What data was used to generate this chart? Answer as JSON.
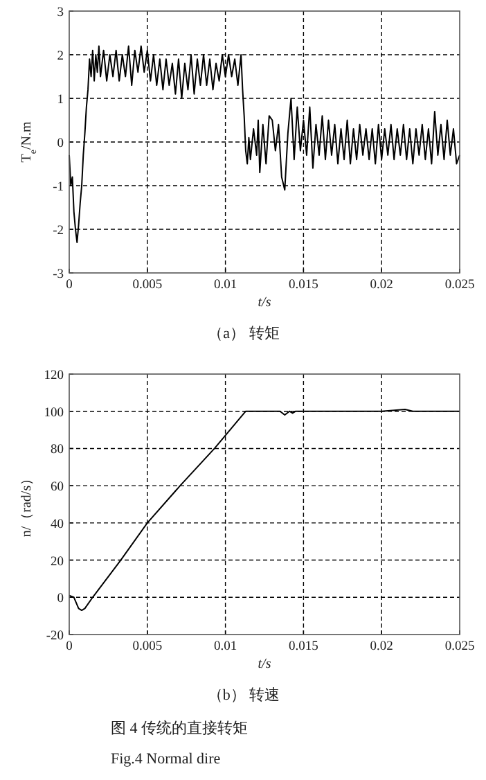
{
  "chart_data": [
    {
      "type": "line",
      "title": "（a）  转矩",
      "xlabel": "t/s",
      "ylabel": "T$_{e}$/N.m",
      "xlim": [
        0,
        0.025
      ],
      "ylim": [
        -3,
        3
      ],
      "xticks": [
        0,
        0.005,
        0.01,
        0.015,
        0.02,
        0.025
      ],
      "yticks": [
        -3,
        -2,
        -1,
        0,
        1,
        2,
        3
      ],
      "grid": true,
      "series": [
        {
          "color": "#000000",
          "x": [
            0,
            0.0001,
            0.0002,
            0.0003,
            0.0004,
            0.0005,
            0.0006,
            0.0007,
            0.0008,
            0.0009,
            0.001,
            0.0011,
            0.0012,
            0.0013,
            0.0014,
            0.0015,
            0.0016,
            0.0017,
            0.0018,
            0.0019,
            0.002,
            0.0022,
            0.0024,
            0.0026,
            0.0028,
            0.003,
            0.0032,
            0.0034,
            0.0036,
            0.0038,
            0.004,
            0.0042,
            0.0044,
            0.0046,
            0.0048,
            0.005,
            0.0052,
            0.0054,
            0.0056,
            0.0058,
            0.006,
            0.0062,
            0.0064,
            0.0066,
            0.0068,
            0.007,
            0.0072,
            0.0074,
            0.0076,
            0.0078,
            0.008,
            0.0082,
            0.0084,
            0.0086,
            0.0088,
            0.009,
            0.0092,
            0.0094,
            0.0096,
            0.0098,
            0.01,
            0.0102,
            0.0104,
            0.0106,
            0.0108,
            0.011,
            0.0111,
            0.0112,
            0.0113,
            0.0114,
            0.0115,
            0.0116,
            0.0118,
            0.012,
            0.0121,
            0.0122,
            0.0124,
            0.0126,
            0.0128,
            0.013,
            0.0132,
            0.0134,
            0.0136,
            0.0138,
            0.014,
            0.0142,
            0.0144,
            0.0146,
            0.0148,
            0.015,
            0.0152,
            0.0154,
            0.0156,
            0.0158,
            0.016,
            0.0162,
            0.0164,
            0.0166,
            0.0168,
            0.017,
            0.0172,
            0.0174,
            0.0176,
            0.0178,
            0.018,
            0.0182,
            0.0184,
            0.0186,
            0.0188,
            0.019,
            0.0192,
            0.0194,
            0.0196,
            0.0198,
            0.02,
            0.0202,
            0.0204,
            0.0206,
            0.0208,
            0.021,
            0.0212,
            0.0214,
            0.0216,
            0.0218,
            0.022,
            0.0222,
            0.0224,
            0.0226,
            0.0228,
            0.023,
            0.0232,
            0.0234,
            0.0236,
            0.0238,
            0.024,
            0.0242,
            0.0244,
            0.0246,
            0.0248,
            0.025
          ],
          "values": [
            -0.3,
            -1.0,
            -0.8,
            -1.6,
            -2.0,
            -2.3,
            -1.9,
            -1.4,
            -1.0,
            -0.3,
            0.2,
            0.8,
            1.2,
            1.9,
            1.5,
            2.1,
            1.4,
            2.0,
            1.6,
            2.2,
            1.5,
            2.1,
            1.4,
            2.0,
            1.5,
            2.1,
            1.4,
            2.0,
            1.5,
            2.2,
            1.3,
            2.1,
            1.6,
            2.2,
            1.6,
            2.1,
            1.4,
            2.0,
            1.3,
            1.9,
            1.2,
            1.9,
            1.3,
            1.8,
            1.1,
            1.9,
            1.0,
            1.8,
            1.2,
            2.0,
            1.1,
            1.9,
            1.3,
            2.0,
            1.3,
            1.9,
            1.2,
            1.8,
            1.4,
            2.0,
            1.5,
            2.0,
            1.5,
            1.9,
            1.3,
            2.0,
            1.2,
            0.6,
            -0.2,
            -0.5,
            0.1,
            -0.4,
            0.3,
            -0.3,
            0.5,
            -0.7,
            0.4,
            -0.5,
            0.6,
            0.5,
            -0.2,
            0.4,
            -0.8,
            -1.1,
            0.2,
            1.0,
            -0.4,
            0.8,
            -0.2,
            0.5,
            -0.3,
            0.8,
            -0.6,
            0.4,
            -0.3,
            0.6,
            -0.4,
            0.5,
            -0.3,
            0.4,
            -0.5,
            0.3,
            -0.4,
            0.5,
            -0.5,
            0.3,
            -0.4,
            0.4,
            -0.3,
            0.3,
            -0.4,
            0.3,
            -0.5,
            0.4,
            -0.4,
            0.3,
            -0.3,
            0.4,
            -0.4,
            0.3,
            -0.3,
            0.4,
            -0.4,
            0.3,
            -0.5,
            0.3,
            -0.3,
            0.4,
            -0.4,
            0.3,
            -0.5,
            0.7,
            -0.3,
            0.4,
            -0.4,
            0.5,
            -0.3,
            0.3,
            -0.5,
            -0.3
          ]
        }
      ]
    },
    {
      "type": "line",
      "title": "（b）  转速",
      "xlabel": "t/s",
      "ylabel": "n/（rad/s）",
      "xlim": [
        0,
        0.025
      ],
      "ylim": [
        -20,
        120
      ],
      "xticks": [
        0,
        0.005,
        0.01,
        0.015,
        0.02,
        0.025
      ],
      "yticks": [
        -20,
        0,
        20,
        40,
        60,
        80,
        100,
        120
      ],
      "grid": true,
      "annotations": [
        "图 4   传统的直接转矩",
        "Fig.4    Normal dire"
      ],
      "series": [
        {
          "color": "#000000",
          "x": [
            0,
            0.0003,
            0.0006,
            0.0008,
            0.001,
            0.0015,
            0.0033,
            0.005,
            0.0071,
            0.0093,
            0.0113,
            0.0125,
            0.0135,
            0.0138,
            0.0141,
            0.0143,
            0.0145,
            0.02,
            0.0215,
            0.022,
            0.025
          ],
          "values": [
            1,
            0,
            -6,
            -7,
            -6,
            0,
            20,
            40,
            60,
            80,
            100,
            100,
            100,
            98,
            100,
            99,
            100,
            100,
            101,
            100,
            100
          ]
        }
      ]
    }
  ]
}
